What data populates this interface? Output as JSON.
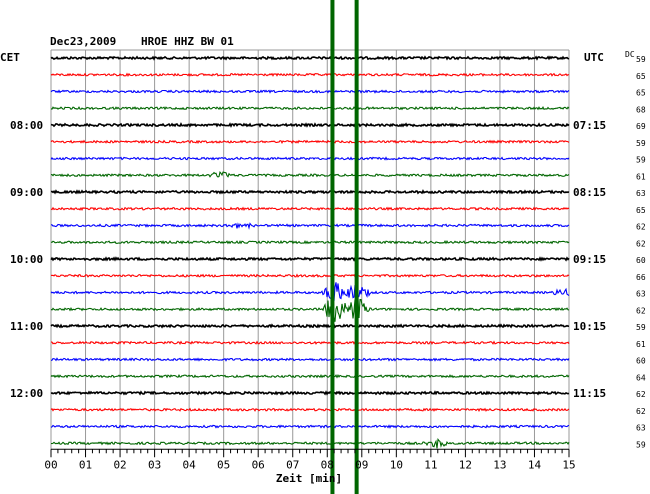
{
  "header": {
    "date": "Dec23,2009",
    "station": "HROE HHZ BW 01",
    "left_tz": "CET",
    "right_tz": "UTC",
    "dc_label": "DC"
  },
  "chart_data": {
    "type": "line",
    "title": "Dec23,2009   HROE HHZ BW 01",
    "xlabel": "Zeit [min]",
    "xlim": [
      0,
      15
    ],
    "x_ticks": [
      "00",
      "01",
      "02",
      "03",
      "04",
      "05",
      "06",
      "07",
      "08",
      "09",
      "10",
      "11",
      "12",
      "13",
      "14",
      "15"
    ],
    "grid": true,
    "trace_colors": [
      "#000000",
      "#ff0000",
      "#0000ff",
      "#006600"
    ],
    "left_hour_labels": [
      {
        "row": 4,
        "text": "08:00"
      },
      {
        "row": 8,
        "text": "09:00"
      },
      {
        "row": 12,
        "text": "10:00"
      },
      {
        "row": 16,
        "text": "11:00"
      },
      {
        "row": 20,
        "text": "12:00"
      }
    ],
    "right_hour_labels": [
      {
        "row": 4,
        "text": "07:15"
      },
      {
        "row": 8,
        "text": "08:15"
      },
      {
        "row": 12,
        "text": "09:15"
      },
      {
        "row": 16,
        "text": "10:15"
      },
      {
        "row": 20,
        "text": "11:15"
      }
    ],
    "dc_offsets": [
      "59",
      "65",
      "65",
      "68",
      "69",
      "59",
      "59",
      "61",
      "63",
      "65",
      "62",
      "62",
      "60",
      "66",
      "63",
      "62",
      "59",
      "61",
      "60",
      "64",
      "62",
      "62",
      "63",
      "59"
    ],
    "marker_lines": [
      {
        "minute": 8.15,
        "color": "#006600"
      },
      {
        "minute": 8.85,
        "color": "#006600"
      }
    ],
    "events": [
      {
        "row": 14,
        "minute": 8.2,
        "amplitude": 0.9
      },
      {
        "row": 15,
        "minute": 8.2,
        "amplitude": 1.0
      },
      {
        "row": 15,
        "minute": 8.85,
        "amplitude": 0.9
      },
      {
        "row": 14,
        "minute": 8.85,
        "amplitude": 0.7
      },
      {
        "row": 10,
        "minute": 5.5,
        "amplitude": 0.3
      },
      {
        "row": 23,
        "minute": 11.2,
        "amplitude": 0.35
      },
      {
        "row": 7,
        "minute": 4.9,
        "amplitude": 0.3
      },
      {
        "row": 14,
        "minute": 14.9,
        "amplitude": 0.3
      }
    ]
  }
}
